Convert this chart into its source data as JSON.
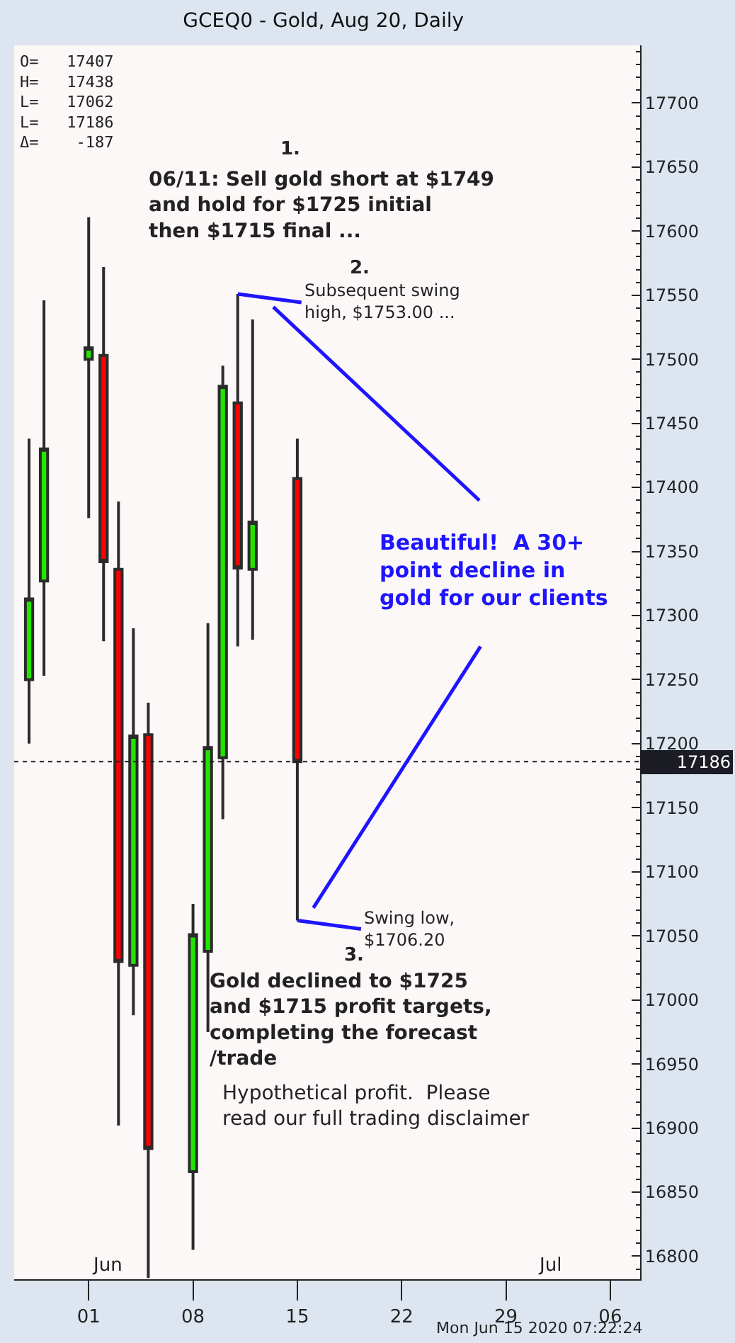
{
  "chart_data": {
    "type": "candlestick",
    "title": "GCEQ0 - Gold, Aug 20, Daily",
    "x": [
      "2020-05-28",
      "2020-05-29",
      "2020-06-01",
      "2020-06-02",
      "2020-06-03",
      "2020-06-04",
      "2020-06-05",
      "2020-06-08",
      "2020-06-09",
      "2020-06-10",
      "2020-06-11",
      "2020-06-12",
      "2020-06-15"
    ],
    "ohlc": [
      [
        17250,
        17438,
        17200,
        17313
      ],
      [
        17327,
        17546,
        17253,
        17430
      ],
      [
        17500,
        17611,
        17376,
        17509
      ],
      [
        17503,
        17572,
        17280,
        17342
      ],
      [
        17336,
        17389,
        16902,
        17030
      ],
      [
        17027,
        17290,
        16988,
        17206
      ],
      [
        17207,
        17232,
        16783,
        16884
      ],
      [
        16866,
        17075,
        16805,
        17051
      ],
      [
        17038,
        17294,
        16975,
        17197
      ],
      [
        17189,
        17495,
        17141,
        17479
      ],
      [
        17466,
        17551,
        17276,
        17337
      ],
      [
        17336,
        17531,
        17281,
        17373
      ],
      [
        17407,
        17438,
        17062,
        17186
      ]
    ],
    "colors": [
      "#22e600",
      "#22e600",
      "#22e600",
      "#ff0000",
      "#ff0000",
      "#22e600",
      "#ff0000",
      "#22e600",
      "#22e600",
      "#22e600",
      "#ff0000",
      "#22e600",
      "#ff0000"
    ],
    "xlim": [
      "2020-05-27",
      "2020-07-08"
    ],
    "xticks": [
      {
        "value": "2020-06-01",
        "label": "01"
      },
      {
        "value": "2020-06-08",
        "label": "08"
      },
      {
        "value": "2020-06-15",
        "label": "15"
      },
      {
        "value": "2020-06-22",
        "label": "22"
      },
      {
        "value": "2020-06-29",
        "label": "29"
      },
      {
        "value": "2020-07-06",
        "label": "06"
      }
    ],
    "ylim": [
      16782,
      17745
    ],
    "yticks": [
      16800,
      16850,
      16900,
      16950,
      17000,
      17050,
      17100,
      17150,
      17200,
      17250,
      17300,
      17350,
      17400,
      17450,
      17500,
      17550,
      17600,
      17650,
      17700
    ],
    "ref_lines": [
      {
        "axis": "y",
        "value": 17186,
        "label": "17186",
        "color": "#1c1c24",
        "line_style": "dotted"
      }
    ],
    "grid": false,
    "annotations": [
      "O=   17407\nH=   17438\nL=   17062\nL=   17186\nΔ=    -187",
      "1.",
      "06/11: Sell gold short at $1749\nand hold for $1725 initial\nthen $1715 final ...",
      "2.",
      {
        "text": "Subsequent swing\nhigh, $1753.00 ...",
        "x": "2020-06-11",
        "y": 17551
      },
      "Beautiful!  A 30+\npoint decline in\ngold for our clients",
      {
        "text": "Swing low,\n$1706.20",
        "x": "2020-06-15",
        "y": 17062
      },
      "3.",
      "Gold declined to $1725\nand $1715 profit targets,\ncompleting the forecast\n/trade",
      "Hypothetical profit.  Please\nread our full trading disclaimer",
      "Mon Jun 15 2020 07:22:24",
      "Jun",
      "Jul"
    ]
  }
}
